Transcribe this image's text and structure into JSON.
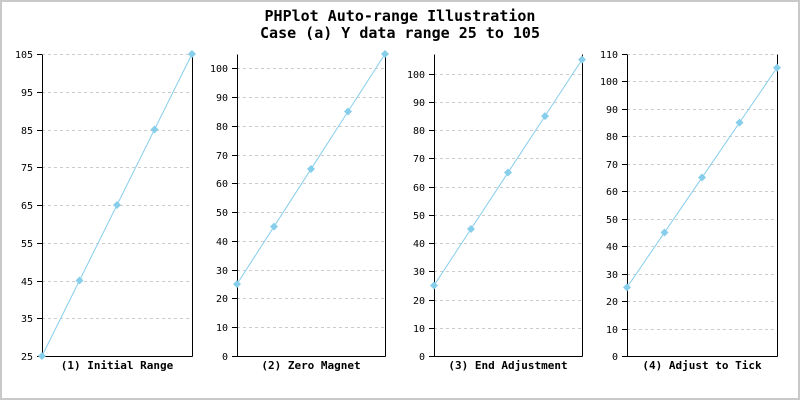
{
  "page": {
    "title_line1": "PHPlot Auto-range Illustration",
    "title_line2": "Case (a) Y data range 25 to 105"
  },
  "colors": {
    "background": "#ffffff",
    "image_border": "#c9c9c9",
    "axis": "#000000",
    "grid": "#cccccc",
    "series": "#87ceeb",
    "text": "#000000"
  },
  "chart_data": [
    {
      "type": "line",
      "title": "(1) Initial Range",
      "x": [
        0,
        1,
        2,
        3,
        4
      ],
      "values": [
        25,
        45,
        65,
        85,
        105
      ],
      "ylim": [
        25,
        105
      ],
      "yticks": [
        25,
        35,
        45,
        55,
        65,
        75,
        85,
        95,
        105
      ],
      "grid": "dashed horizontal",
      "marker": "diamond",
      "legend": "none",
      "xlabel": "",
      "ylabel": ""
    },
    {
      "type": "line",
      "title": "(2) Zero Magnet",
      "x": [
        0,
        1,
        2,
        3,
        4
      ],
      "values": [
        25,
        45,
        65,
        85,
        105
      ],
      "ylim": [
        0,
        105
      ],
      "yticks": [
        0,
        10,
        20,
        30,
        40,
        50,
        60,
        70,
        80,
        90,
        100
      ],
      "grid": "dashed horizontal",
      "marker": "diamond",
      "legend": "none",
      "xlabel": "",
      "ylabel": ""
    },
    {
      "type": "line",
      "title": "(3) End Adjustment",
      "x": [
        0,
        1,
        2,
        3,
        4
      ],
      "values": [
        25,
        45,
        65,
        85,
        105
      ],
      "ylim": [
        0,
        107
      ],
      "yticks": [
        0,
        10,
        20,
        30,
        40,
        50,
        60,
        70,
        80,
        90,
        100
      ],
      "grid": "dashed horizontal",
      "marker": "diamond",
      "legend": "none",
      "xlabel": "",
      "ylabel": ""
    },
    {
      "type": "line",
      "title": "(4) Adjust to Tick",
      "x": [
        0,
        1,
        2,
        3,
        4
      ],
      "values": [
        25,
        45,
        65,
        85,
        105
      ],
      "ylim": [
        0,
        110
      ],
      "yticks": [
        0,
        10,
        20,
        30,
        40,
        50,
        60,
        70,
        80,
        90,
        100,
        110
      ],
      "grid": "dashed horizontal",
      "marker": "diamond",
      "legend": "none",
      "xlabel": "",
      "ylabel": ""
    }
  ]
}
